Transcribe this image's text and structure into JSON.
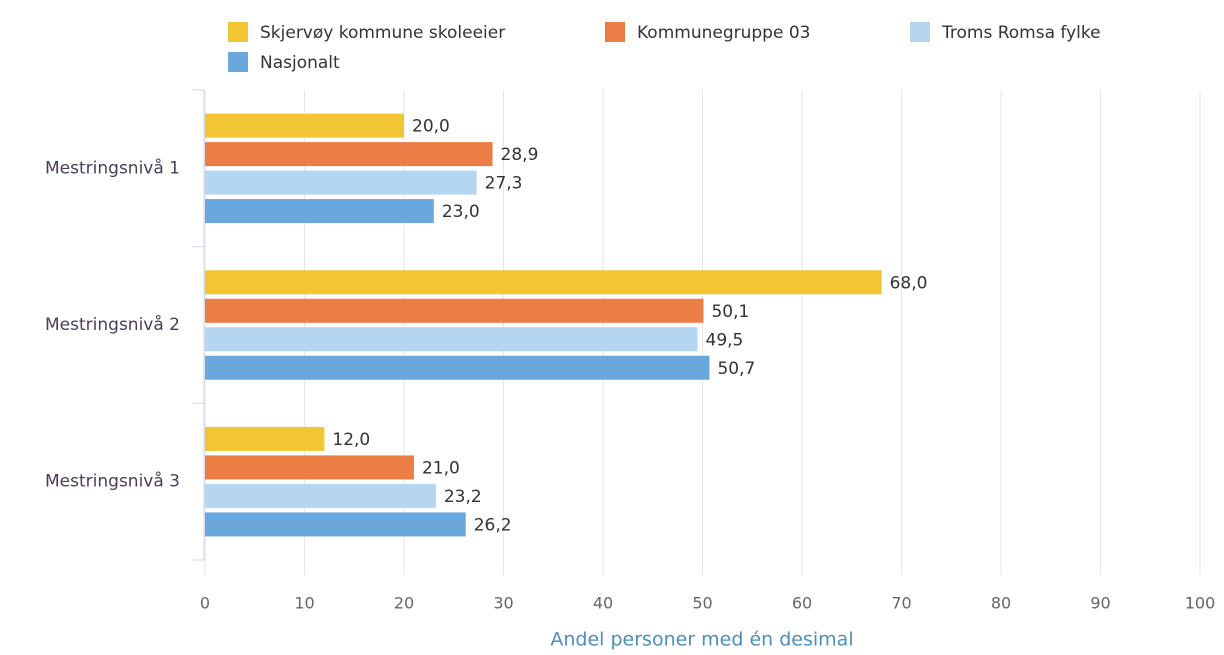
{
  "chart_data": {
    "type": "bar",
    "orientation": "horizontal",
    "categories": [
      "Mestringsnivå 1",
      "Mestringsnivå 2",
      "Mestringsnivå 3"
    ],
    "series": [
      {
        "name": "Skjervøy kommune skoleeier",
        "color": "#f2c532",
        "values": [
          20.0,
          68.0,
          12.0
        ],
        "value_labels": [
          "20,0",
          "68,0",
          "12,0"
        ]
      },
      {
        "name": "Kommunegruppe 03",
        "color": "#ec7e45",
        "values": [
          28.9,
          50.1,
          21.0
        ],
        "value_labels": [
          "28,9",
          "50,1",
          "21,0"
        ]
      },
      {
        "name": "Troms Romsa fylke",
        "color": "#b5d6f1",
        "values": [
          27.3,
          49.5,
          23.2
        ],
        "value_labels": [
          "27,3",
          "49,5",
          "23,2"
        ]
      },
      {
        "name": "Nasjonalt",
        "color": "#6aa7dd",
        "values": [
          23.0,
          50.7,
          26.2
        ],
        "value_labels": [
          "23,0",
          "50,7",
          "26,2"
        ]
      }
    ],
    "xlim": [
      0,
      100
    ],
    "xticks": [
      0,
      10,
      20,
      30,
      40,
      50,
      60,
      70,
      80,
      90,
      100
    ],
    "xlabel": "Andel personer med én desimal",
    "grid": true,
    "legend": "top"
  }
}
